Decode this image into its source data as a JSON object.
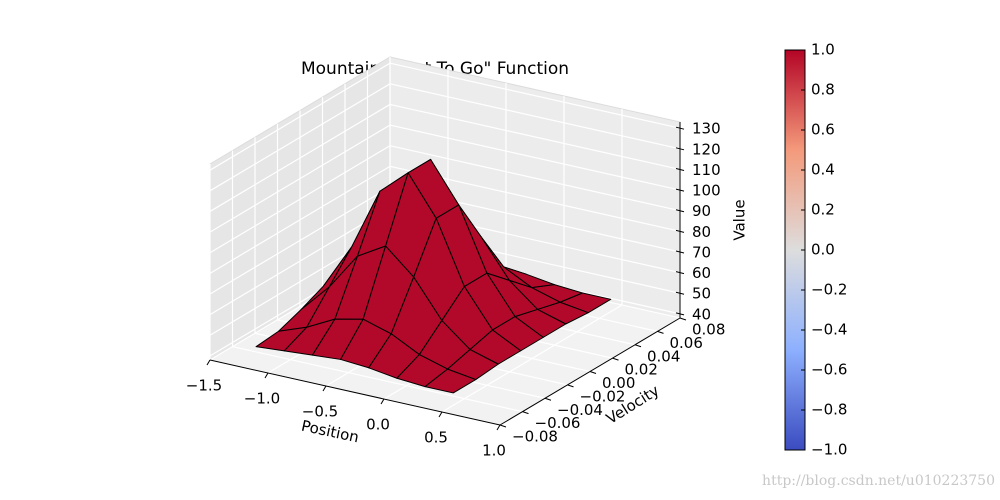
{
  "chart_data": {
    "type": "surface",
    "title": "Mountain \"Cost To Go\" Function",
    "xlabel": "Position",
    "ylabel": "Velocity",
    "zlabel": "Value",
    "x": [
      -1.2,
      -0.957,
      -0.714,
      -0.471,
      -0.229,
      0.014,
      0.257,
      0.5
    ],
    "y": [
      -0.07,
      -0.05,
      -0.03,
      -0.01,
      0.01,
      0.03,
      0.05,
      0.07
    ],
    "z": [
      [
        45,
        46,
        50,
        55,
        55,
        50,
        46,
        45
      ],
      [
        46,
        51,
        64,
        77,
        77,
        64,
        51,
        46
      ],
      [
        47,
        58,
        82,
        107,
        107,
        82,
        58,
        47
      ],
      [
        48,
        61,
        90,
        119,
        119,
        90,
        61,
        48
      ],
      [
        47,
        57,
        78,
        100,
        100,
        78,
        57,
        47
      ],
      [
        45,
        50,
        60,
        70,
        70,
        60,
        50,
        45
      ],
      [
        44,
        46,
        49,
        52,
        52,
        49,
        46,
        44
      ],
      [
        44,
        44,
        45,
        45,
        45,
        45,
        44,
        44
      ]
    ],
    "color": "#b2092b",
    "xlim": [
      -1.5,
      1.0
    ],
    "ylim": [
      -0.08,
      0.08
    ],
    "zlim": [
      38,
      133
    ],
    "xticks": [
      {
        "value": -1.5,
        "label": "−1.5"
      },
      {
        "value": -1.0,
        "label": "−1.0"
      },
      {
        "value": -0.5,
        "label": "−0.5"
      },
      {
        "value": 0,
        "label": "0.0"
      },
      0.5,
      {
        "value": 1,
        "label": "1.0"
      }
    ],
    "yticks": [
      {
        "value": -0.08,
        "label": "−0.08"
      },
      {
        "value": -0.06,
        "label": "−0.06"
      },
      {
        "value": -0.04,
        "label": "−0.04"
      },
      {
        "value": -0.02,
        "label": "−0.02"
      },
      {
        "value": 0,
        "label": "0.00"
      },
      0.02,
      0.04,
      0.06,
      0.08
    ],
    "zticks": [
      40,
      50,
      60,
      70,
      80,
      90,
      100,
      110,
      120,
      130
    ],
    "grid": true,
    "colorbar": {
      "lim": [
        -1,
        1
      ],
      "colors": [
        "#3b4cc0",
        "#8db0fe",
        "#dddddd",
        "#f49a7b",
        "#b40426"
      ],
      "ticks": [
        {
          "value": -1,
          "label": "−1.0"
        },
        {
          "value": -0.8,
          "label": "−0.8"
        },
        {
          "value": -0.6,
          "label": "−0.6"
        },
        {
          "value": -0.4,
          "label": "−0.4"
        },
        {
          "value": -0.2,
          "label": "−0.2"
        },
        {
          "value": 0,
          "label": "0.0"
        },
        0.2,
        0.4,
        0.6,
        0.8,
        {
          "value": 1,
          "label": "1.0"
        }
      ]
    },
    "watermark": "http://blog.csdn.net/u010223750"
  }
}
